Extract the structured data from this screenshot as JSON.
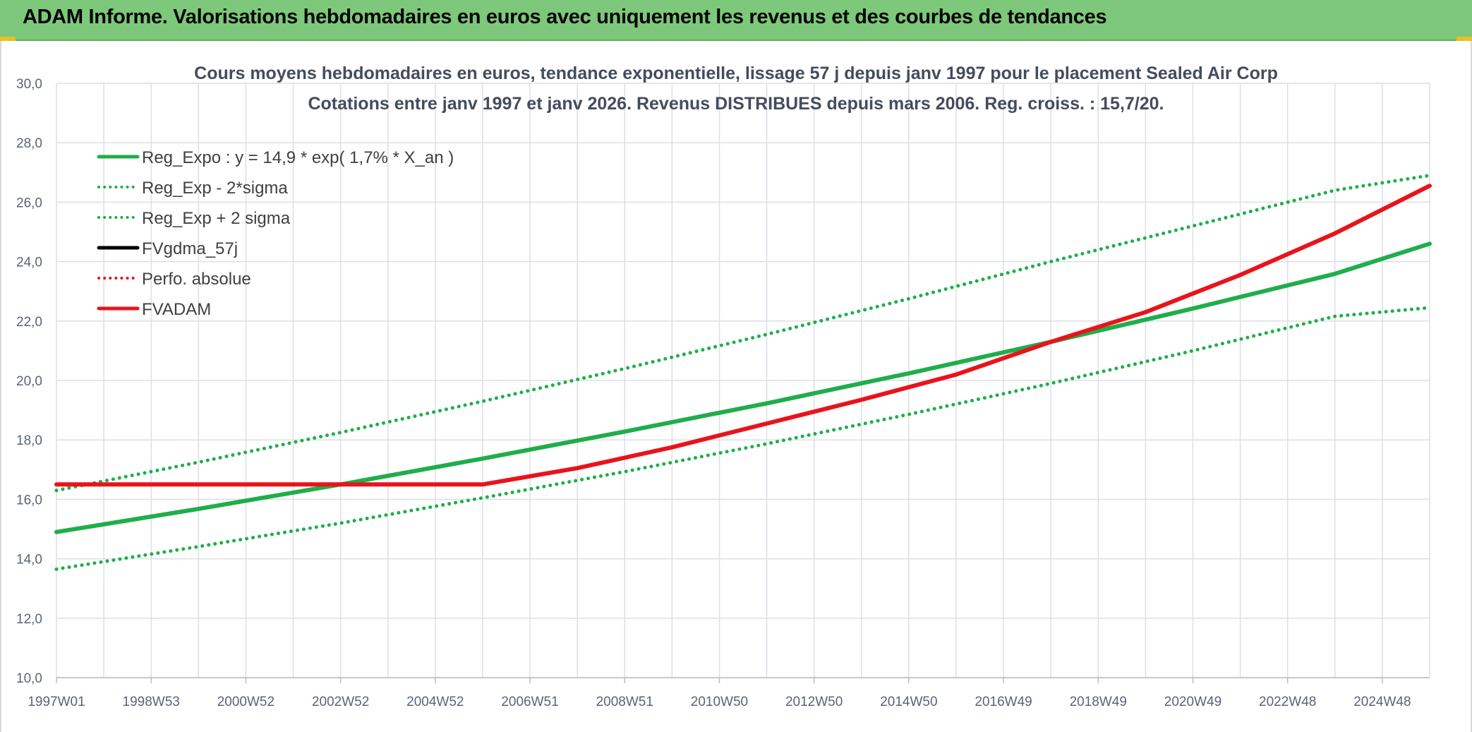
{
  "header": {
    "title": "ADAM Informe. Valorisations hebdomadaires en euros avec uniquement les revenus et des courbes de tendances"
  },
  "chart_data": {
    "type": "line",
    "title": "Cours moyens hebdomadaires en euros, tendance exponentielle, lissage 57 j depuis janv 1997 pour le placement Sealed Air Corp",
    "subtitle": "Cotations entre janv 1997 et janv 2026. Revenus DISTRIBUES depuis mars 2006. Reg. croiss. : 15,7/20.",
    "xlabel": "",
    "ylabel": "",
    "ylim": [
      10,
      30
    ],
    "xlim": [
      1997.0,
      2026.0
    ],
    "y_ticks": [
      "10,0",
      "12,0",
      "14,0",
      "16,0",
      "18,0",
      "20,0",
      "22,0",
      "24,0",
      "26,0",
      "28,0",
      "30,0"
    ],
    "x_ticks": [
      {
        "label": "1997W01",
        "x": 1997.0
      },
      {
        "label": "1998W53",
        "x": 1999.0
      },
      {
        "label": "2000W52",
        "x": 2001.0
      },
      {
        "label": "2002W52",
        "x": 2003.0
      },
      {
        "label": "2004W52",
        "x": 2005.0
      },
      {
        "label": "2006W51",
        "x": 2007.0
      },
      {
        "label": "2008W51",
        "x": 2009.0
      },
      {
        "label": "2010W50",
        "x": 2011.0
      },
      {
        "label": "2012W50",
        "x": 2013.0
      },
      {
        "label": "2014W50",
        "x": 2015.0
      },
      {
        "label": "2016W49",
        "x": 2017.0
      },
      {
        "label": "2018W49",
        "x": 2019.0
      },
      {
        "label": "2020W49",
        "x": 2021.0
      },
      {
        "label": "2022W48",
        "x": 2023.0
      },
      {
        "label": "2024W48",
        "x": 2025.0
      }
    ],
    "grid": true,
    "legend_position": "top-left",
    "series": [
      {
        "name": "Reg_Expo : y = 14,9 * exp( 1,7% *  X_an )",
        "color": "#1fae4b",
        "style": "solid",
        "x": [
          1997.0,
          2000.0,
          2003.0,
          2006.0,
          2009.0,
          2012.0,
          2015.0,
          2018.0,
          2021.0,
          2024.0,
          2026.0
        ],
        "values": [
          14.9,
          15.68,
          16.5,
          17.37,
          18.28,
          19.23,
          20.24,
          21.3,
          22.42,
          23.59,
          24.6
        ]
      },
      {
        "name": "Reg_Exp - 2*sigma",
        "color": "#1fae4b",
        "style": "dotted",
        "x": [
          1997.0,
          2000.0,
          2003.0,
          2006.0,
          2009.0,
          2012.0,
          2015.0,
          2018.0,
          2021.0,
          2024.0,
          2026.0
        ],
        "values": [
          13.65,
          14.41,
          15.2,
          16.05,
          16.93,
          17.87,
          18.86,
          19.9,
          21.0,
          22.16,
          22.45
        ]
      },
      {
        "name": "Reg_Exp + 2 sigma",
        "color": "#1fae4b",
        "style": "dotted",
        "x": [
          1997.0,
          2000.0,
          2003.0,
          2006.0,
          2009.0,
          2012.0,
          2015.0,
          2018.0,
          2021.0,
          2024.0,
          2026.0
        ],
        "values": [
          16.3,
          17.25,
          18.25,
          19.3,
          20.4,
          21.55,
          22.75,
          24.0,
          25.2,
          26.4,
          26.9
        ]
      },
      {
        "name": "FVgdma_57j",
        "color": "#000000",
        "style": "solid",
        "x": [],
        "values": []
      },
      {
        "name": "Perfo. absolue",
        "color": "#e8141b",
        "style": "dotted",
        "x": [],
        "values": []
      },
      {
        "name": "FVADAM",
        "color": "#e8141b",
        "style": "solid",
        "x": [
          1997.0,
          2006.0,
          2008.0,
          2010.0,
          2012.0,
          2014.0,
          2016.0,
          2018.0,
          2020.0,
          2022.0,
          2024.0,
          2026.0
        ],
        "values": [
          16.5,
          16.5,
          17.05,
          17.75,
          18.55,
          19.35,
          20.2,
          21.3,
          22.3,
          23.55,
          24.95,
          26.55
        ]
      }
    ]
  }
}
